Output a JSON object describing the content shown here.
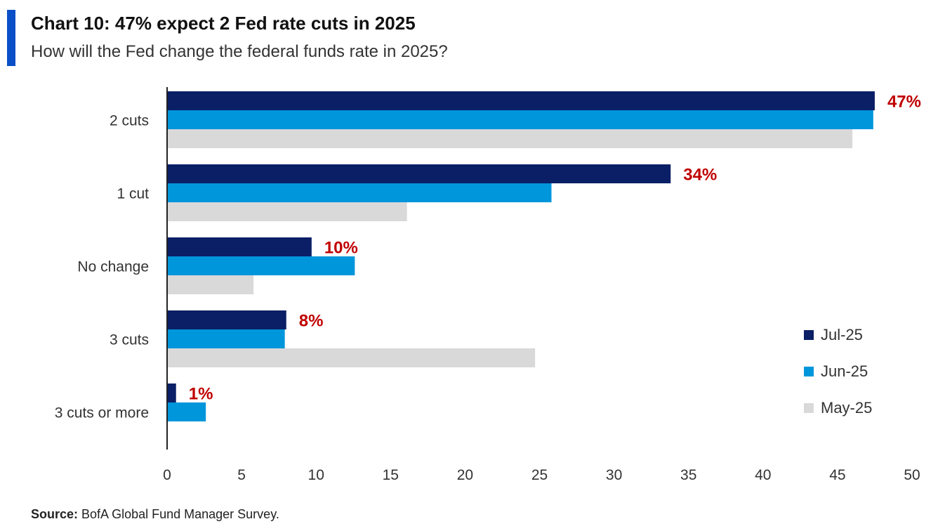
{
  "header": {
    "title": "Chart 10: 47% expect 2 Fed rate cuts in 2025",
    "subtitle": "How will the Fed change the federal funds rate in 2025?"
  },
  "footer": {
    "source_label": "Source:",
    "source_text": " BofA Global Fund Manager Survey."
  },
  "colors": {
    "jul": "#0b1f66",
    "jun": "#0096db",
    "may": "#d9d9d9",
    "annotation": "#c00000",
    "accent_bar": "#0a4fc7"
  },
  "chart_data": {
    "type": "bar",
    "orientation": "horizontal",
    "categories": [
      "2 cuts",
      "1 cut",
      "No change",
      "3 cuts",
      "3 cuts or more"
    ],
    "series": [
      {
        "name": "Jul-25",
        "values": [
          47.5,
          33.8,
          9.7,
          8.0,
          0.6
        ]
      },
      {
        "name": "Jun-25",
        "values": [
          47.4,
          25.8,
          12.6,
          7.9,
          2.6
        ]
      },
      {
        "name": "May-25",
        "values": [
          46.0,
          16.1,
          5.8,
          24.7,
          0.0
        ]
      }
    ],
    "annotations": [
      "47%",
      "34%",
      "10%",
      "8%",
      "1%"
    ],
    "xlim": [
      0,
      50
    ],
    "xticks": [
      0,
      5,
      10,
      15,
      20,
      25,
      30,
      35,
      40,
      45,
      50
    ],
    "legend_position": "right",
    "grid": false
  }
}
